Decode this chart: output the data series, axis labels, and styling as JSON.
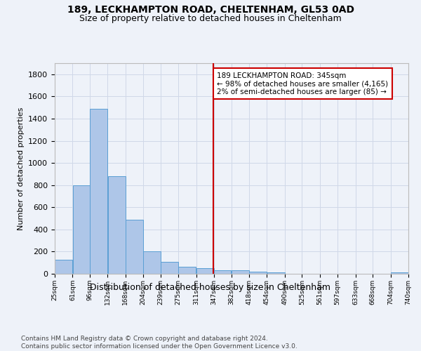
{
  "title1": "189, LECKHAMPTON ROAD, CHELTENHAM, GL53 0AD",
  "title2": "Size of property relative to detached houses in Cheltenham",
  "xlabel": "Distribution of detached houses by size in Cheltenham",
  "ylabel": "Number of detached properties",
  "footer1": "Contains HM Land Registry data © Crown copyright and database right 2024.",
  "footer2": "Contains public sector information licensed under the Open Government Licence v3.0.",
  "annotation_line1": "189 LECKHAMPTON ROAD: 345sqm",
  "annotation_line2": "← 98% of detached houses are smaller (4,165)",
  "annotation_line3": "2% of semi-detached houses are larger (85) →",
  "bar_edges": [
    25,
    61,
    96,
    132,
    168,
    204,
    239,
    275,
    311,
    347,
    382,
    418,
    454,
    490,
    525,
    561,
    597,
    633,
    668,
    704,
    740
  ],
  "bar_heights": [
    125,
    800,
    1490,
    880,
    490,
    205,
    105,
    65,
    48,
    32,
    30,
    20,
    10,
    0,
    0,
    0,
    0,
    0,
    0,
    15
  ],
  "bar_color": "#aec6e8",
  "bar_edge_color": "#5a9fd4",
  "vline_x": 345,
  "vline_color": "#cc0000",
  "annotation_box_color": "#cc0000",
  "background_color": "#eef2f9",
  "grid_color": "#d0d8e8",
  "ylim": [
    0,
    1900
  ],
  "xlim": [
    25,
    740
  ],
  "yticks": [
    0,
    200,
    400,
    600,
    800,
    1000,
    1200,
    1400,
    1600,
    1800
  ],
  "xtick_labels": [
    "25sqm",
    "61sqm",
    "96sqm",
    "132sqm",
    "168sqm",
    "204sqm",
    "239sqm",
    "275sqm",
    "311sqm",
    "347sqm",
    "382sqm",
    "418sqm",
    "454sqm",
    "490sqm",
    "525sqm",
    "561sqm",
    "597sqm",
    "633sqm",
    "668sqm",
    "704sqm",
    "740sqm"
  ]
}
